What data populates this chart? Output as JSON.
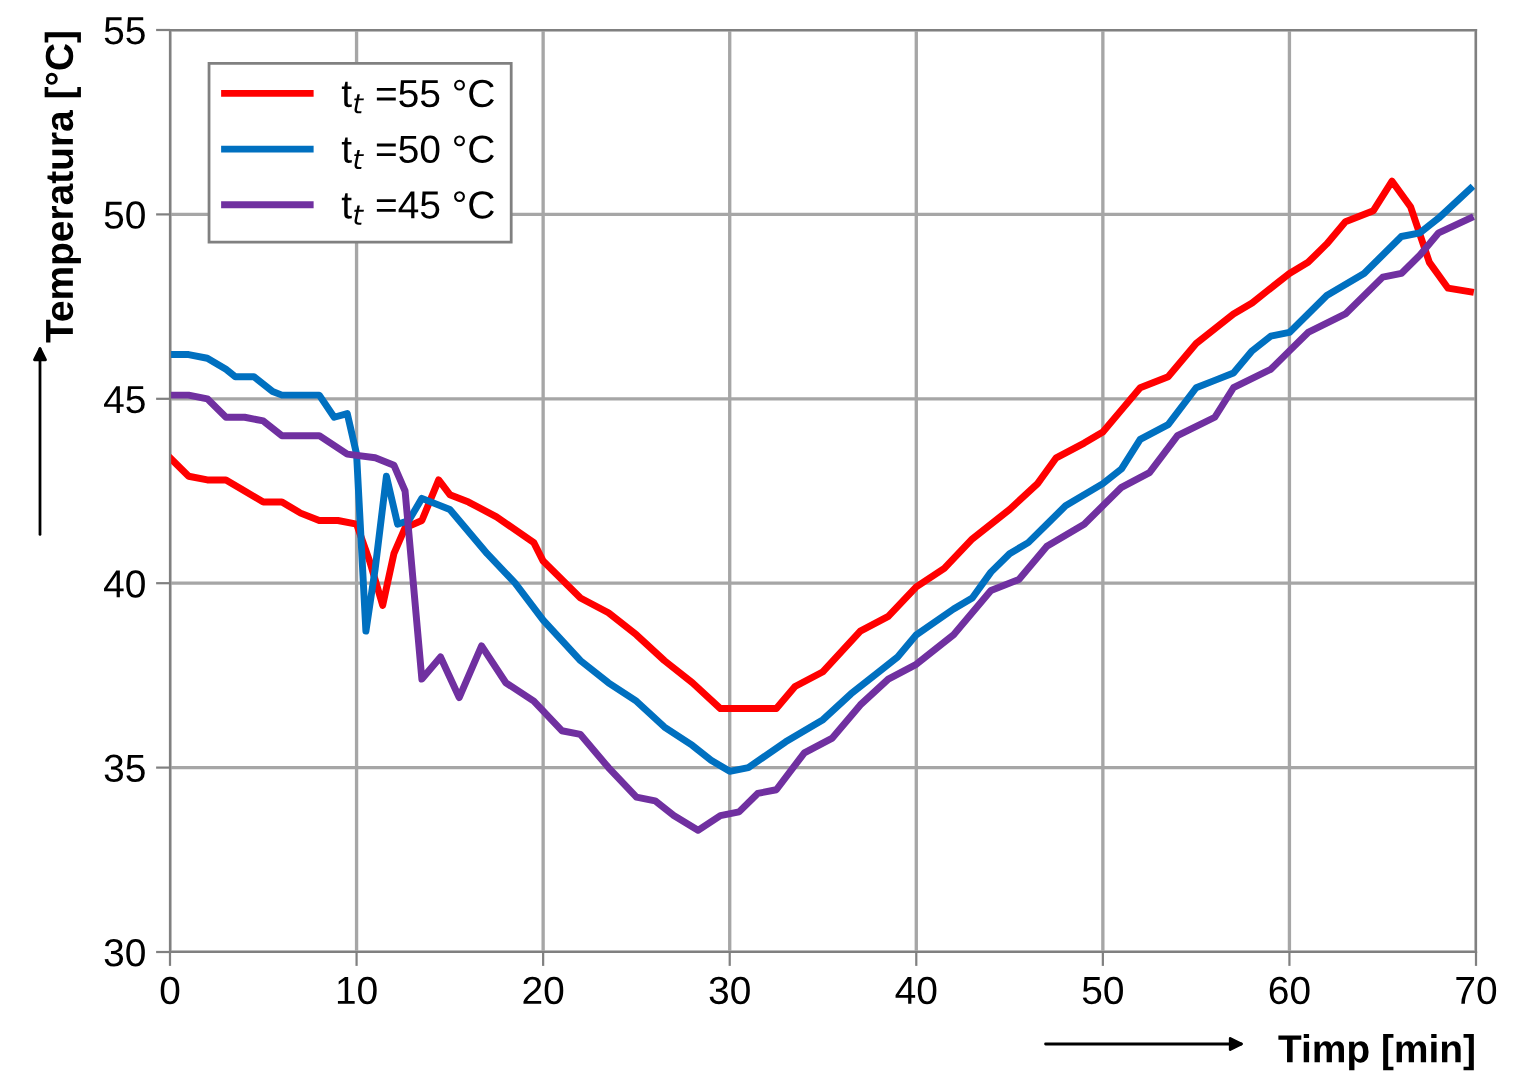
{
  "chart_data": {
    "type": "line",
    "xlabel": "Timp [min]",
    "ylabel": "Temperatura [°C]",
    "xlim": [
      0,
      70
    ],
    "xticks": [
      0,
      10,
      20,
      30,
      40,
      50,
      60,
      70
    ],
    "ylim": [
      30,
      55
    ],
    "yticks": [
      30,
      35,
      40,
      45,
      50,
      55
    ],
    "grid": true,
    "legend": "top left",
    "marker": "none",
    "line_style": "solid",
    "series": [
      {
        "name": "t$_{t}$ =55 °C",
        "color": "#ff0000",
        "x": [
          0,
          1,
          2,
          3,
          4,
          5,
          6,
          7,
          8,
          9,
          10,
          10.7,
          11.4,
          12,
          12.6,
          13.5,
          14.4,
          15,
          16,
          17.5,
          19.5,
          20,
          22,
          23.5,
          25,
          26.5,
          28,
          29.5,
          31,
          32.5,
          33.5,
          35,
          37,
          38.5,
          40,
          41.5,
          43,
          45,
          46.5,
          47.5,
          49,
          50,
          51,
          52,
          53.5,
          55,
          57,
          58,
          60,
          61,
          62,
          63,
          64.5,
          65.5,
          66.5,
          67.5,
          68.5,
          69.7
        ],
        "values": [
          43.4,
          42.9,
          42.8,
          42.8,
          42.5,
          42.2,
          42.2,
          41.9,
          41.7,
          41.7,
          41.6,
          40.6,
          39.4,
          40.8,
          41.5,
          41.7,
          42.8,
          42.4,
          42.2,
          41.8,
          41.1,
          40.6,
          39.6,
          39.2,
          38.6,
          37.9,
          37.3,
          36.6,
          36.6,
          36.6,
          37.2,
          37.6,
          38.7,
          39.1,
          39.9,
          40.4,
          41.2,
          42.0,
          42.7,
          43.4,
          43.8,
          44.1,
          44.7,
          45.3,
          45.6,
          46.5,
          47.3,
          47.6,
          48.4,
          48.7,
          49.2,
          49.8,
          50.1,
          50.9,
          50.2,
          48.7,
          48.0,
          47.9
        ]
      },
      {
        "name": "t$_{t}$ =50 °C",
        "color": "#0070c0",
        "x": [
          0,
          1,
          2,
          3,
          3.5,
          4.5,
          5.5,
          6,
          7,
          8,
          8.8,
          9.5,
          10,
          10.5,
          11,
          11.6,
          12.2,
          12.8,
          13.5,
          15,
          17,
          18.5,
          20,
          22,
          23.5,
          25,
          26.5,
          28,
          29,
          30,
          31,
          33,
          35,
          36.5,
          38,
          39,
          40,
          42,
          43,
          44,
          45,
          46,
          47,
          48,
          50,
          51,
          52,
          53.5,
          55,
          56,
          57,
          58,
          59,
          60,
          61,
          62,
          64,
          65,
          66,
          67,
          68,
          69.7
        ],
        "values": [
          46.2,
          46.2,
          46.1,
          45.8,
          45.6,
          45.6,
          45.2,
          45.1,
          45.1,
          45.1,
          44.5,
          44.6,
          43.5,
          38.7,
          40.4,
          42.9,
          41.6,
          41.7,
          42.3,
          42.0,
          40.8,
          40.0,
          39.0,
          37.9,
          37.3,
          36.8,
          36.1,
          35.6,
          35.2,
          34.9,
          35.0,
          35.7,
          36.3,
          37.0,
          37.6,
          38.0,
          38.6,
          39.3,
          39.6,
          40.3,
          40.8,
          41.1,
          41.6,
          42.1,
          42.7,
          43.1,
          43.9,
          44.3,
          45.3,
          45.5,
          45.7,
          46.3,
          46.7,
          46.8,
          47.3,
          47.8,
          48.4,
          48.9,
          49.4,
          49.5,
          49.9,
          50.7
        ]
      },
      {
        "name": "t$_{t}$ =45 °C",
        "color": "#7030a0",
        "x": [
          0,
          1,
          2,
          3,
          4,
          5,
          6,
          7,
          8,
          9.5,
          11,
          12,
          12.6,
          13.5,
          14.5,
          15.5,
          16.7,
          18,
          19.5,
          21,
          22,
          23.5,
          25,
          26,
          27,
          28.3,
          29.5,
          30.5,
          31.5,
          32.5,
          34,
          35.5,
          37,
          38.5,
          40,
          42,
          44,
          45.5,
          47,
          49,
          51,
          52.5,
          54,
          56,
          57,
          59,
          60,
          61,
          63,
          65,
          66,
          67,
          68,
          69.7
        ],
        "values": [
          45.1,
          45.1,
          45.0,
          44.5,
          44.5,
          44.4,
          44.0,
          44.0,
          44.0,
          43.5,
          43.4,
          43.2,
          42.5,
          37.4,
          38.0,
          36.9,
          38.3,
          37.3,
          36.8,
          36.0,
          35.9,
          35.0,
          34.2,
          34.1,
          33.7,
          33.3,
          33.7,
          33.8,
          34.3,
          34.4,
          35.4,
          35.8,
          36.7,
          37.4,
          37.8,
          38.6,
          39.8,
          40.1,
          41.0,
          41.6,
          42.6,
          43.0,
          44.0,
          44.5,
          45.3,
          45.8,
          46.3,
          46.8,
          47.3,
          48.3,
          48.4,
          48.9,
          49.5,
          49.9
        ]
      }
    ]
  }
}
